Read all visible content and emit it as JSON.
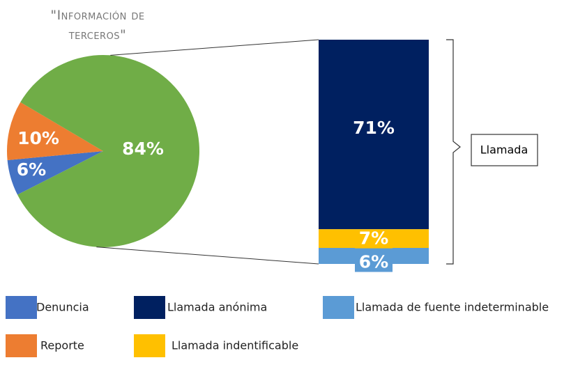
{
  "chart_data": {
    "type": "bar-of-pie",
    "title": "\"Información de terceros\"",
    "pie": {
      "labels": [
        "Denuncia",
        "Reporte",
        "Llamada"
      ],
      "values": [
        6,
        10,
        84
      ],
      "value_labels": [
        "6%",
        "10%",
        "84%"
      ],
      "colors": [
        "#4472c4",
        "#ed7d31",
        "#70ad47"
      ]
    },
    "bar": {
      "labels": [
        "Llamada anónima",
        "Llamada indentificable",
        "Llamada de fuente indeterminable"
      ],
      "values": [
        71,
        7,
        6
      ],
      "value_labels": [
        "71%",
        "7%",
        "6%"
      ],
      "colors": [
        "#002060",
        "#ffc000",
        "#5b9bd5"
      ]
    }
  }
}
